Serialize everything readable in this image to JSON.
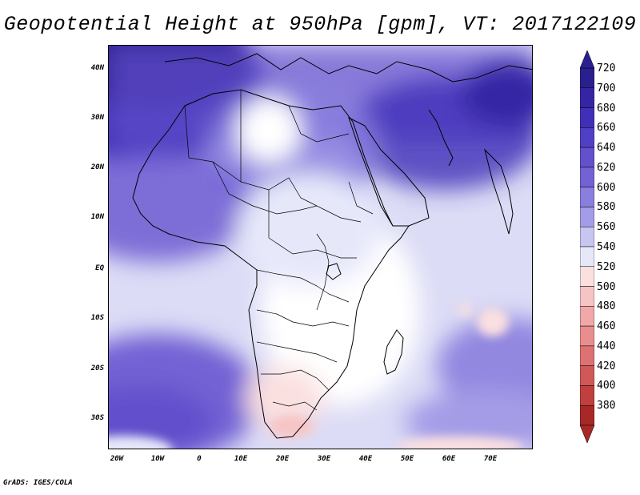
{
  "title": "Geopotential Height at 950hPa [gpm], VT: 2017122109",
  "footer": "GrADS: IGES/COLA",
  "axes": {
    "lat_ticks": [
      "40N",
      "30N",
      "20N",
      "10N",
      "EQ",
      "10S",
      "20S",
      "30S"
    ],
    "lon_ticks": [
      "20W",
      "10W",
      "0",
      "10E",
      "20E",
      "30E",
      "40E",
      "50E",
      "60E",
      "70E"
    ]
  },
  "colorbar": {
    "levels": [
      "720",
      "700",
      "680",
      "660",
      "640",
      "620",
      "600",
      "580",
      "560",
      "540",
      "520",
      "500",
      "480",
      "460",
      "440",
      "420",
      "400",
      "380"
    ],
    "colors": [
      "#2a1f8f",
      "#3525a5",
      "#4030b8",
      "#5040c4",
      "#6250cc",
      "#7262d4",
      "#8a7ede",
      "#a49ce6",
      "#c8c6f0",
      "#e6e8fa",
      "#fbe0e0",
      "#f6c4c4",
      "#f0a8a8",
      "#e88e8e",
      "#de7272",
      "#d05858",
      "#c04040",
      "#a82828"
    ]
  },
  "map": {
    "ocean_base": "#dcdcf6",
    "land_base": "#c8c6f0"
  }
}
